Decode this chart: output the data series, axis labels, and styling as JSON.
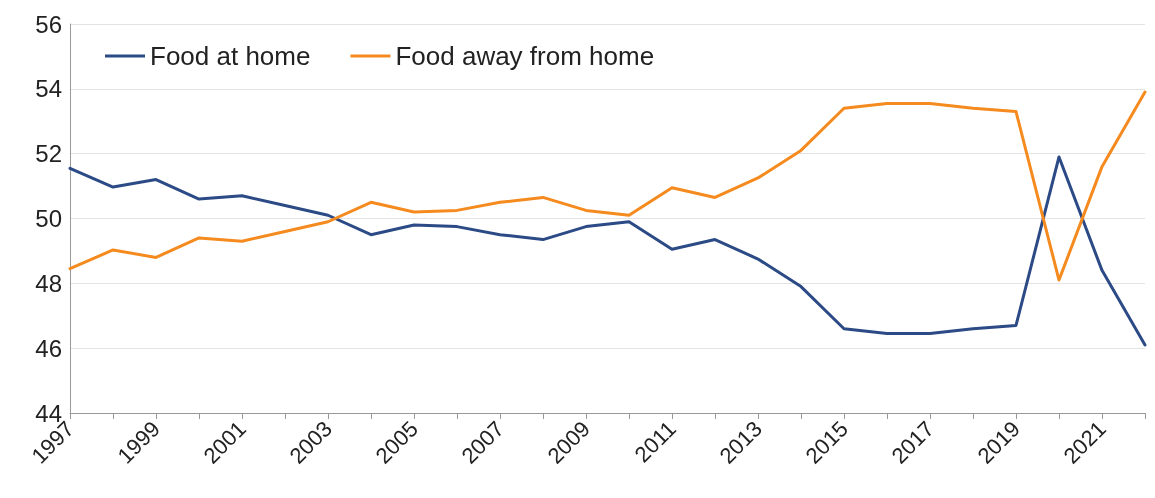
{
  "chart_data": {
    "type": "line",
    "categories": [
      "1997",
      null,
      "1999",
      null,
      "2001",
      null,
      "2003",
      null,
      "2005",
      null,
      "2007",
      null,
      "2009",
      null,
      "2011",
      null,
      "2013",
      null,
      "2015",
      null,
      "2017",
      null,
      "2019",
      null,
      "2021",
      null
    ],
    "series": [
      {
        "name": "Food at home",
        "color": "#2b4a86",
        "values": [
          51.55,
          50.97,
          51.2,
          50.6,
          50.7,
          50.4,
          50.1,
          49.5,
          49.8,
          49.75,
          49.5,
          49.35,
          49.75,
          49.9,
          49.05,
          49.35,
          48.75,
          47.9,
          46.6,
          46.45,
          46.45,
          46.6,
          46.7,
          51.9,
          48.4,
          46.1
        ]
      },
      {
        "name": "Food away from home",
        "color": "#f58a1f",
        "values": [
          48.45,
          49.03,
          48.8,
          49.4,
          49.3,
          49.6,
          49.9,
          50.5,
          50.2,
          50.25,
          50.5,
          50.65,
          50.25,
          50.1,
          50.95,
          50.65,
          51.25,
          52.1,
          53.4,
          53.55,
          53.55,
          53.4,
          53.3,
          48.1,
          51.6,
          53.9
        ]
      }
    ],
    "ylim": [
      44,
      56
    ],
    "yticks": [
      44,
      46,
      48,
      50,
      52,
      54,
      56
    ],
    "grid": "y",
    "legend": "top left",
    "marker": "none",
    "line_style": "solid"
  }
}
